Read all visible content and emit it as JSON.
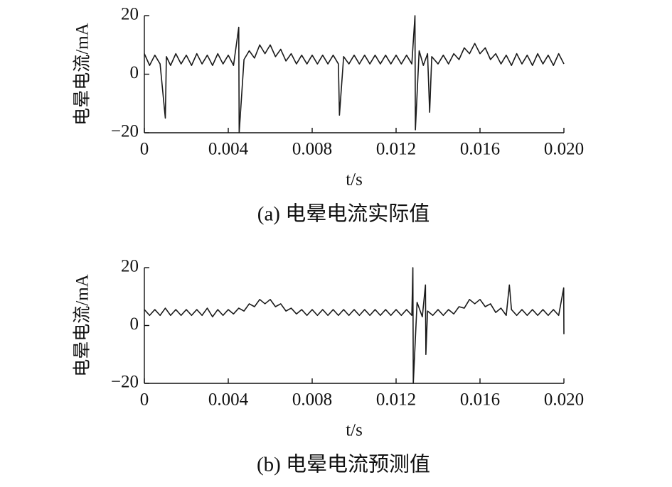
{
  "chart_data": [
    {
      "type": "line",
      "title": "(a) 电晕电流实际值",
      "xlabel": "t/s",
      "ylabel": "电晕电流/mA",
      "color": "#1a1a1a",
      "xlim": [
        0,
        0.02
      ],
      "ylim": [
        -20,
        20
      ],
      "xticks": [
        0,
        0.004,
        0.008,
        0.012,
        0.016,
        {
          "value": 0.02,
          "label": "0.020"
        }
      ],
      "yticks": [
        {
          "value": -20,
          "label": "−20"
        },
        0,
        20
      ],
      "x": [
        0,
        0.00025,
        0.0005,
        0.00075,
        0.001,
        0.00105,
        0.00125,
        0.0015,
        0.00175,
        0.002,
        0.00225,
        0.0025,
        0.00275,
        0.003,
        0.00325,
        0.0035,
        0.00375,
        0.004,
        0.00425,
        0.0045,
        0.00452,
        0.00475,
        0.005,
        0.00525,
        0.0055,
        0.00575,
        0.006,
        0.00625,
        0.0065,
        0.00675,
        0.007,
        0.00725,
        0.0075,
        0.00775,
        0.008,
        0.00825,
        0.0085,
        0.00875,
        0.009,
        0.00925,
        0.0093,
        0.0095,
        0.00975,
        0.01,
        0.01025,
        0.0105,
        0.01075,
        0.011,
        0.01125,
        0.0115,
        0.01175,
        0.012,
        0.01225,
        0.0125,
        0.01275,
        0.0129,
        0.01292,
        0.0131,
        0.0133,
        0.0135,
        0.0136,
        0.0137,
        0.014,
        0.01425,
        0.0145,
        0.01475,
        0.015,
        0.01525,
        0.0155,
        0.01575,
        0.016,
        0.01625,
        0.0165,
        0.01675,
        0.017,
        0.01725,
        0.0175,
        0.01775,
        0.018,
        0.01825,
        0.0185,
        0.01875,
        0.019,
        0.01925,
        0.0195,
        0.01975,
        0.02
      ],
      "values": [
        7,
        3,
        6.5,
        3.5,
        -15,
        6,
        3,
        7,
        3.5,
        6.5,
        3,
        7,
        3.5,
        6.5,
        3,
        7,
        3.5,
        6.5,
        3,
        16,
        -20,
        5,
        8,
        5.5,
        10,
        7,
        10,
        6,
        8.5,
        4.5,
        7,
        3.5,
        6.5,
        3.5,
        6.5,
        3.5,
        6.5,
        3.5,
        6.5,
        3.5,
        -14,
        6,
        3.5,
        6.5,
        3.5,
        6.5,
        3.5,
        6.5,
        3.5,
        6.5,
        3.5,
        6.5,
        3.5,
        6.5,
        3.5,
        20,
        -19,
        8,
        3,
        7,
        -13,
        6,
        3.5,
        6.5,
        3.5,
        7,
        5,
        9,
        7,
        10.5,
        7,
        9,
        5,
        7,
        3.5,
        6.5,
        3,
        7,
        3.5,
        6.5,
        3,
        7,
        3.5,
        6.5,
        3,
        7,
        3.5
      ]
    },
    {
      "type": "line",
      "title": "(b) 电晕电流预测值",
      "xlabel": "t/s",
      "ylabel": "电晕电流/mA",
      "color": "#1a1a1a",
      "xlim": [
        0,
        0.02
      ],
      "ylim": [
        -20,
        20
      ],
      "xticks": [
        0,
        0.004,
        0.008,
        0.012,
        0.016,
        {
          "value": 0.02,
          "label": "0.020"
        }
      ],
      "yticks": [
        {
          "value": -20,
          "label": "−20"
        },
        0,
        20
      ],
      "x": [
        0,
        0.00025,
        0.0005,
        0.00075,
        0.001,
        0.00125,
        0.0015,
        0.00175,
        0.002,
        0.00225,
        0.0025,
        0.00275,
        0.003,
        0.00325,
        0.0035,
        0.00375,
        0.004,
        0.00425,
        0.0045,
        0.00475,
        0.005,
        0.00525,
        0.0055,
        0.00575,
        0.006,
        0.00625,
        0.0065,
        0.00675,
        0.007,
        0.00725,
        0.0075,
        0.00775,
        0.008,
        0.00825,
        0.0085,
        0.00875,
        0.009,
        0.00925,
        0.0095,
        0.00975,
        0.01,
        0.01025,
        0.0105,
        0.01075,
        0.011,
        0.01125,
        0.0115,
        0.01175,
        0.012,
        0.01225,
        0.0125,
        0.01275,
        0.0128,
        0.01282,
        0.013,
        0.01325,
        0.0134,
        0.01342,
        0.0135,
        0.01375,
        0.014,
        0.01425,
        0.0145,
        0.01475,
        0.015,
        0.01525,
        0.0155,
        0.01575,
        0.016,
        0.01625,
        0.0165,
        0.01675,
        0.017,
        0.01725,
        0.0174,
        0.0175,
        0.01775,
        0.018,
        0.01825,
        0.0185,
        0.01875,
        0.019,
        0.01925,
        0.0195,
        0.01975,
        0.01999,
        0.02
      ],
      "values": [
        5.5,
        3.5,
        5.5,
        3.5,
        6,
        3.5,
        5.5,
        3.5,
        5.5,
        3.5,
        5.5,
        3.5,
        6,
        3,
        5.5,
        3.5,
        5.5,
        4,
        6,
        5,
        7.5,
        6.5,
        9,
        7.5,
        9,
        6.5,
        7.5,
        5,
        6,
        4,
        5.5,
        3.5,
        5.5,
        3.5,
        5.5,
        3.5,
        5.5,
        3.5,
        5.5,
        3.5,
        5.5,
        3.5,
        5.5,
        3.5,
        5.5,
        3.5,
        5.5,
        3.5,
        5.5,
        3.5,
        5.5,
        3.5,
        20,
        -20,
        8,
        3,
        14,
        -10,
        5,
        3.5,
        5.5,
        3.5,
        5.5,
        4,
        6.5,
        6,
        9,
        7.5,
        9,
        6.5,
        7.5,
        4.5,
        6,
        3.5,
        14,
        5.5,
        3.5,
        5.5,
        3.5,
        5.5,
        3.5,
        5.5,
        3.5,
        5.5,
        3.5,
        13,
        -3
      ]
    }
  ]
}
